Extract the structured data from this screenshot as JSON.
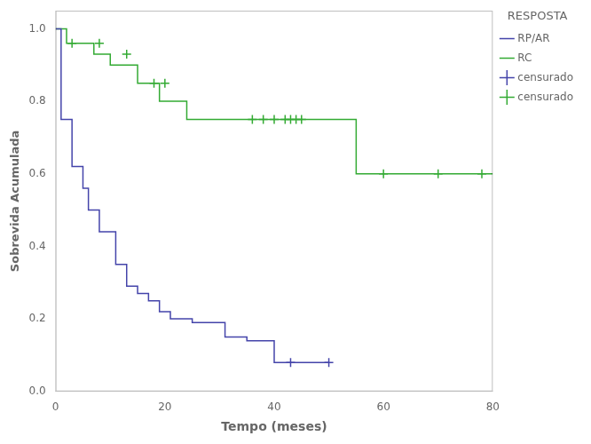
{
  "chart_data": {
    "type": "line",
    "xlabel": "Tempo (meses)",
    "ylabel": "Sobrevida Acumulada",
    "legend_title": "RESPOSTA",
    "xlim": [
      0,
      80
    ],
    "ylim": [
      0.0,
      1.05
    ],
    "xticks": [
      0,
      20,
      40,
      60,
      80
    ],
    "yticks": [
      {
        "value": 0.0,
        "label": "0.0"
      },
      0.2,
      0.4,
      0.6,
      0.8,
      {
        "value": 1.0,
        "label": "1.0"
      }
    ],
    "grid": false,
    "legend": "upper right",
    "series": [
      {
        "name": "RP/AR",
        "type": "line",
        "line_style": "step",
        "color": "#4444aa",
        "x": [
          0,
          1,
          1,
          3,
          3,
          5,
          5,
          6,
          6,
          8,
          8,
          11,
          11,
          13,
          13,
          15,
          15,
          17,
          17,
          19,
          19,
          21,
          21,
          25,
          25,
          29,
          29,
          31,
          31,
          35,
          35,
          40,
          40,
          50
        ],
        "values": [
          1.0,
          1.0,
          0.75,
          0.75,
          0.62,
          0.62,
          0.56,
          0.56,
          0.5,
          0.5,
          0.44,
          0.44,
          0.35,
          0.35,
          0.29,
          0.29,
          0.27,
          0.27,
          0.25,
          0.25,
          0.22,
          0.22,
          0.2,
          0.2,
          0.19,
          0.19,
          0.19,
          0.19,
          0.15,
          0.15,
          0.14,
          0.14,
          0.08,
          0.08
        ]
      },
      {
        "name": "RC",
        "type": "line",
        "line_style": "step",
        "color": "#33aa33",
        "x": [
          0,
          2,
          2,
          7,
          7,
          10,
          10,
          15,
          15,
          19,
          19,
          22,
          22,
          24,
          24,
          55,
          55,
          80
        ],
        "values": [
          1.0,
          1.0,
          0.96,
          0.96,
          0.93,
          0.93,
          0.9,
          0.9,
          0.85,
          0.85,
          0.8,
          0.8,
          0.8,
          0.8,
          0.75,
          0.75,
          0.6,
          0.6
        ]
      },
      {
        "name": "censurado",
        "type": "scatter",
        "marker": "plus",
        "color": "#4444aa",
        "x": [
          43,
          50
        ],
        "values": [
          0.08,
          0.08
        ]
      },
      {
        "name": "censurado",
        "type": "scatter",
        "marker": "plus",
        "color": "#33aa33",
        "x": [
          3,
          8,
          13,
          18,
          20,
          36,
          38,
          40,
          42,
          43,
          44,
          45,
          60,
          70,
          78
        ],
        "values": [
          0.96,
          0.96,
          0.93,
          0.85,
          0.85,
          0.75,
          0.75,
          0.75,
          0.75,
          0.75,
          0.75,
          0.75,
          0.6,
          0.6,
          0.6
        ]
      }
    ]
  }
}
